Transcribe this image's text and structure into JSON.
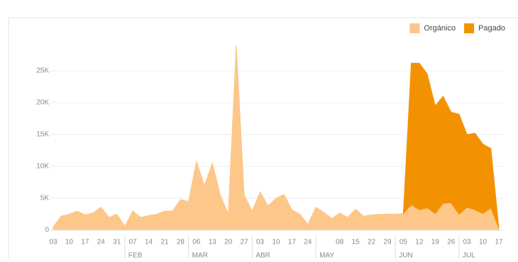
{
  "chart_data": {
    "type": "stacked-area",
    "categories": [
      "03",
      null,
      "10",
      null,
      "17",
      null,
      "24",
      null,
      "31",
      null,
      "07",
      null,
      "14",
      null,
      "21",
      null,
      "28",
      null,
      "06",
      null,
      "13",
      null,
      "20",
      null,
      "27",
      null,
      "03",
      null,
      "10",
      null,
      "17",
      null,
      "24",
      null,
      null,
      null,
      "08",
      null,
      "15",
      null,
      "22",
      null,
      "29",
      null,
      "05",
      null,
      "12",
      null,
      "19",
      null,
      "26",
      null,
      "03",
      null,
      "10",
      null,
      "17"
    ],
    "month_labels": [
      null,
      null,
      null,
      null,
      null,
      null,
      null,
      null,
      null,
      "FEB",
      null,
      null,
      null,
      null,
      null,
      null,
      null,
      "MAR",
      null,
      null,
      null,
      null,
      null,
      null,
      null,
      "ABR",
      null,
      null,
      null,
      null,
      null,
      null,
      null,
      "MAY",
      null,
      null,
      null,
      null,
      null,
      null,
      null,
      null,
      null,
      "JUN",
      null,
      null,
      null,
      null,
      null,
      null,
      null,
      "JUL",
      null,
      null,
      null,
      null,
      null
    ],
    "series": [
      {
        "name": "Orgánico",
        "color": "#fdc78a",
        "values": [
          500,
          2200,
          2500,
          3000,
          2400,
          2700,
          3600,
          2000,
          2500,
          600,
          3000,
          2000,
          2300,
          2500,
          3000,
          3000,
          4800,
          4500,
          10800,
          7000,
          10500,
          5500,
          2500,
          29000,
          5500,
          3000,
          6000,
          3800,
          5000,
          5600,
          3200,
          2500,
          900,
          3600,
          2800,
          1800,
          2700,
          2000,
          3300,
          2200,
          2400,
          2500,
          2500,
          2500,
          2600,
          4000,
          3200,
          3500,
          2600,
          4200,
          4300,
          2500,
          3600,
          3200,
          2600,
          3500,
          300
        ]
      },
      {
        "name": "Pagado",
        "color": "#f39200",
        "values": [
          null,
          null,
          null,
          null,
          null,
          null,
          null,
          null,
          null,
          null,
          null,
          null,
          null,
          null,
          null,
          null,
          null,
          null,
          null,
          null,
          null,
          null,
          null,
          null,
          null,
          null,
          null,
          null,
          null,
          null,
          null,
          null,
          null,
          null,
          null,
          null,
          null,
          null,
          null,
          null,
          null,
          null,
          null,
          null,
          0,
          22200,
          23000,
          21000,
          16900,
          16800,
          14200,
          15700,
          11400,
          12000,
          10900,
          9300,
          0
        ]
      }
    ],
    "ylim": [
      0,
      30000
    ],
    "yticks": [
      {
        "value": 0,
        "label": "0"
      },
      {
        "value": 5000,
        "label": "5K"
      },
      {
        "value": 10000,
        "label": "10K"
      },
      {
        "value": 15000,
        "label": "15K"
      },
      {
        "value": 20000,
        "label": "20K"
      },
      {
        "value": 25000,
        "label": "25K"
      }
    ],
    "grid": true,
    "legend": "top-right"
  }
}
